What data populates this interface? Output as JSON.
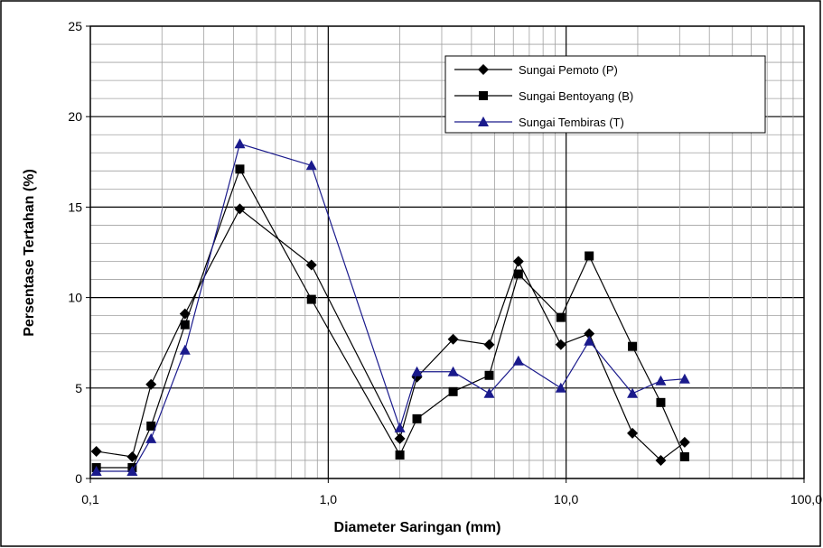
{
  "chart_data": {
    "type": "line",
    "title": "",
    "xlabel": "Diameter Saringan  (mm)",
    "ylabel": "Persentase  Tertahan  (%)",
    "x_scale": "log",
    "xlim": [
      0.1,
      100
    ],
    "ylim": [
      0,
      25
    ],
    "x_ticks": [
      {
        "value": 0.1,
        "label": "0,1"
      },
      {
        "value": 1,
        "label": "1,0"
      },
      {
        "value": 10,
        "label": "10,0"
      },
      {
        "value": 100,
        "label": "100,0"
      }
    ],
    "y_ticks": [
      {
        "value": 0,
        "label": "0"
      },
      {
        "value": 5,
        "label": "5"
      },
      {
        "value": 10,
        "label": "10"
      },
      {
        "value": 15,
        "label": "15"
      },
      {
        "value": 20,
        "label": "20"
      },
      {
        "value": 25,
        "label": "25"
      }
    ],
    "grid": true,
    "legend_position": "top-right",
    "series": [
      {
        "name": "Sungai Pemoto (P)",
        "marker": "diamond",
        "color": "#000000",
        "points": [
          [
            0.106,
            1.5
          ],
          [
            0.15,
            1.2
          ],
          [
            0.18,
            5.2
          ],
          [
            0.25,
            9.1
          ],
          [
            0.425,
            14.9
          ],
          [
            0.85,
            11.8
          ],
          [
            2.0,
            2.2
          ],
          [
            2.36,
            5.6
          ],
          [
            3.35,
            7.7
          ],
          [
            4.75,
            7.4
          ],
          [
            6.3,
            12.0
          ],
          [
            9.5,
            7.4
          ],
          [
            12.5,
            8.0
          ],
          [
            19.0,
            2.5
          ],
          [
            25.0,
            1.0
          ],
          [
            31.5,
            2.0
          ]
        ]
      },
      {
        "name": "Sungai Bentoyang (B)",
        "marker": "square",
        "color": "#000000",
        "points": [
          [
            0.106,
            0.6
          ],
          [
            0.15,
            0.6
          ],
          [
            0.18,
            2.9
          ],
          [
            0.25,
            8.5
          ],
          [
            0.425,
            17.1
          ],
          [
            0.85,
            9.9
          ],
          [
            2.0,
            1.3
          ],
          [
            2.36,
            3.3
          ],
          [
            3.35,
            4.8
          ],
          [
            4.75,
            5.7
          ],
          [
            6.3,
            11.3
          ],
          [
            9.5,
            8.9
          ],
          [
            12.5,
            12.3
          ],
          [
            19.0,
            7.3
          ],
          [
            25.0,
            4.2
          ],
          [
            31.5,
            1.2
          ]
        ]
      },
      {
        "name": "Sungai Tembiras (T)",
        "marker": "triangle",
        "color": "#1a1a8c",
        "points": [
          [
            0.106,
            0.4
          ],
          [
            0.15,
            0.4
          ],
          [
            0.18,
            2.2
          ],
          [
            0.25,
            7.1
          ],
          [
            0.425,
            18.5
          ],
          [
            0.85,
            17.3
          ],
          [
            2.0,
            2.8
          ],
          [
            2.36,
            5.9
          ],
          [
            3.35,
            5.9
          ],
          [
            4.75,
            4.7
          ],
          [
            6.3,
            6.5
          ],
          [
            9.5,
            5.0
          ],
          [
            12.5,
            7.6
          ],
          [
            19.0,
            4.7
          ],
          [
            25.0,
            5.4
          ],
          [
            31.5,
            5.5
          ]
        ]
      }
    ]
  }
}
